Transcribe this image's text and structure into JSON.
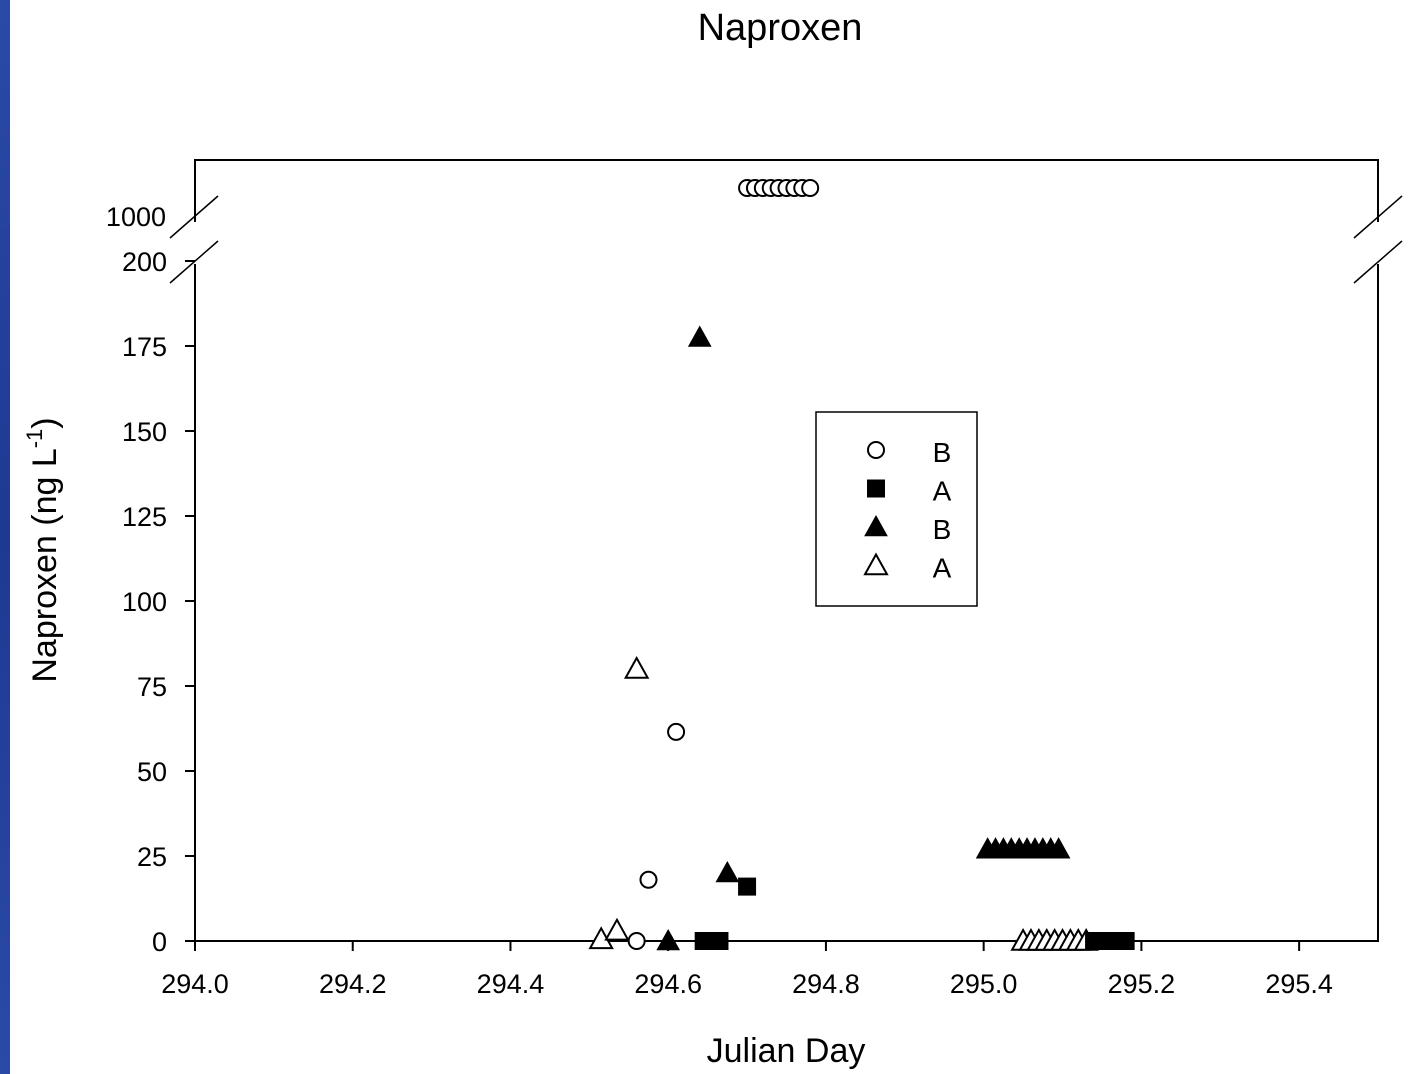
{
  "chart_data": {
    "type": "scatter",
    "title": "Naproxen",
    "xlabel": "Julian Day",
    "ylabel": "Naproxen (ng L",
    "ylabel_sup": "-1",
    "ylabel_close": ")",
    "xlim": [
      294.0,
      295.5
    ],
    "ylim": [
      0,
      200
    ],
    "upper_segment_label": "1000",
    "axis_break": true,
    "grid": false,
    "legend_position": "center-right",
    "x_ticks": [
      "294.0",
      "294.2",
      "294.4",
      "294.6",
      "294.8",
      "295.0",
      "295.2",
      "295.4"
    ],
    "y_ticks": [
      "0",
      "25",
      "50",
      "75",
      "100",
      "125",
      "150",
      "175",
      "200"
    ],
    "series": [
      {
        "name": "B",
        "marker": "open-circle",
        "points": [
          [
            294.56,
            0
          ],
          [
            294.575,
            18
          ],
          [
            294.61,
            61.5
          ]
        ],
        "above_break_x": [
          294.7,
          294.71,
          294.72,
          294.73,
          294.74,
          294.75,
          294.76,
          294.77,
          294.78
        ]
      },
      {
        "name": "A",
        "marker": "filled-square",
        "points": [
          [
            294.645,
            0
          ],
          [
            294.655,
            0
          ],
          [
            294.665,
            0
          ],
          [
            294.7,
            16
          ],
          [
            295.14,
            0
          ],
          [
            295.15,
            0
          ],
          [
            295.16,
            0
          ],
          [
            295.17,
            0
          ],
          [
            295.18,
            0
          ]
        ]
      },
      {
        "name": "B",
        "marker": "filled-triangle",
        "points": [
          [
            294.64,
            177.5
          ],
          [
            294.6,
            0
          ],
          [
            294.675,
            20
          ],
          [
            295.005,
            27
          ],
          [
            295.015,
            27
          ],
          [
            295.025,
            27
          ],
          [
            295.035,
            27
          ],
          [
            295.045,
            27
          ],
          [
            295.055,
            27
          ],
          [
            295.065,
            27
          ],
          [
            295.075,
            27
          ],
          [
            295.085,
            27
          ],
          [
            295.095,
            27
          ]
        ]
      },
      {
        "name": "A",
        "marker": "open-triangle",
        "points": [
          [
            294.515,
            0.5
          ],
          [
            294.535,
            3
          ],
          [
            294.56,
            80
          ],
          [
            295.05,
            0
          ],
          [
            295.06,
            0
          ],
          [
            295.07,
            0
          ],
          [
            295.08,
            0
          ],
          [
            295.09,
            0
          ],
          [
            295.1,
            0
          ],
          [
            295.11,
            0
          ],
          [
            295.12,
            0
          ],
          [
            295.13,
            0
          ]
        ]
      }
    ]
  }
}
